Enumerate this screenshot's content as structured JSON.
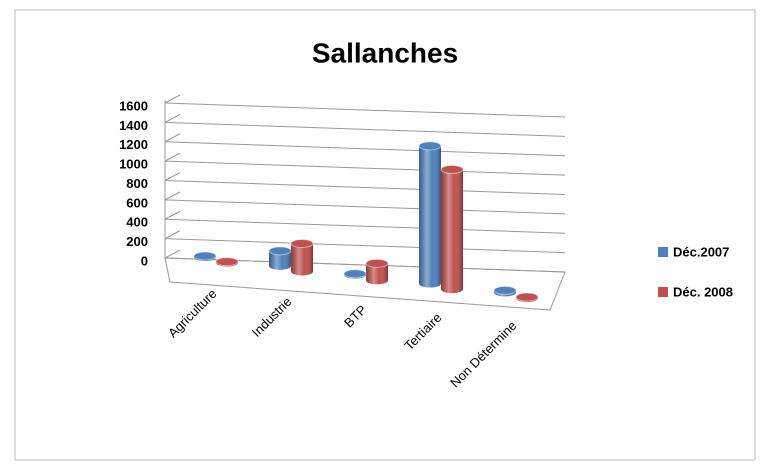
{
  "chart_data": {
    "type": "bar3d",
    "title": "Sallanches",
    "categories": [
      "Agriculture",
      "Industrie",
      "BTP",
      "Tertiaire",
      "Non Détermine"
    ],
    "series": [
      {
        "name": "Déc.2007",
        "color": "#4f81bd",
        "values": [
          10,
          150,
          10,
          1380,
          20
        ]
      },
      {
        "name": "Déc. 2008",
        "color": "#c0504d",
        "values": [
          10,
          280,
          170,
          1200,
          10
        ]
      }
    ],
    "ylim": [
      0,
      1600
    ],
    "yticks": [
      0,
      200,
      400,
      600,
      800,
      1000,
      1200,
      1400,
      1600
    ],
    "grid": true,
    "legend": "right"
  }
}
